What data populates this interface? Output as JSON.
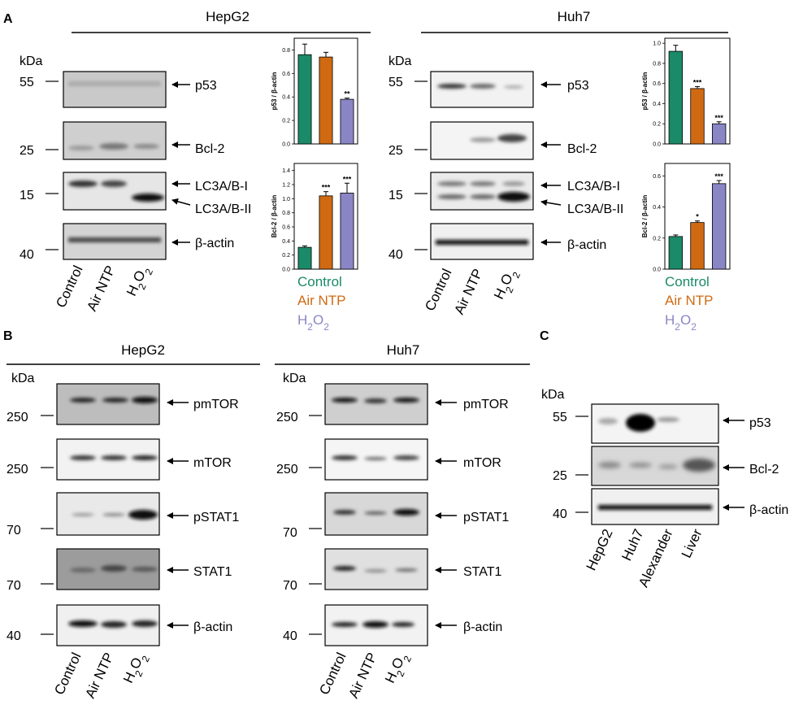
{
  "colors": {
    "control": "#1b8a68",
    "air_ntp": "#d06a12",
    "h2o2": "#8a86c6"
  },
  "units": {
    "kda": "kDa"
  },
  "lanes": {
    "control": "Control",
    "air_ntp": "Air NTP",
    "h2o2_main": "H",
    "h2o2_sub1": "2",
    "h2o2_mid": "O",
    "h2o2_sub2": "2"
  },
  "legend": {
    "control": "Control",
    "air_ntp": "Air NTP",
    "h2o2_main": "H",
    "h2o2_sub1": "2",
    "h2o2_mid": "O",
    "h2o2_sub2": "2"
  },
  "panel_a": {
    "letter": "A",
    "hepg2": {
      "title": "HepG2",
      "blots": [
        {
          "mw": "55",
          "label": "p53"
        },
        {
          "mw": "25",
          "label": "Bcl-2"
        },
        {
          "mw": "15",
          "label": "LC3A/B-I",
          "label2": "LC3A/B-II"
        },
        {
          "mw": "40",
          "label": "β-actin"
        }
      ]
    },
    "huh7": {
      "title": "Huh7",
      "blots": [
        {
          "mw": "55",
          "label": "p53"
        },
        {
          "mw": "25",
          "label": "Bcl-2"
        },
        {
          "mw": "15",
          "label": "LC3A/B-I",
          "label2": "LC3A/B-II"
        },
        {
          "mw": "40",
          "label": "β-actin"
        }
      ]
    }
  },
  "panel_b": {
    "letter": "B",
    "hepg2": {
      "title": "HepG2",
      "blots": [
        {
          "mw": "250",
          "label": "pmTOR"
        },
        {
          "mw": "250",
          "label": "mTOR"
        },
        {
          "mw": "70",
          "label": "pSTAT1"
        },
        {
          "mw": "70",
          "label": "STAT1"
        },
        {
          "mw": "40",
          "label": "β-actin"
        }
      ]
    },
    "huh7": {
      "title": "Huh7",
      "blots": [
        {
          "mw": "250",
          "label": "pmTOR"
        },
        {
          "mw": "250",
          "label": "mTOR"
        },
        {
          "mw": "70",
          "label": "pSTAT1"
        },
        {
          "mw": "70",
          "label": "STAT1"
        },
        {
          "mw": "40",
          "label": "β-actin"
        }
      ]
    }
  },
  "panel_c": {
    "letter": "C",
    "blots": [
      {
        "mw": "55",
        "label": "p53"
      },
      {
        "mw": "25",
        "label": "Bcl-2"
      },
      {
        "mw": "40",
        "label": "β-actin"
      }
    ],
    "lanes": [
      "HepG2",
      "Huh7",
      "Alexander",
      "Liver"
    ]
  },
  "chart_data": [
    {
      "type": "bar",
      "cell": "HepG2",
      "categories": [
        "Control",
        "Air NTP",
        "H2O2"
      ],
      "values": [
        0.76,
        0.74,
        0.38
      ],
      "errors": [
        0.09,
        0.04,
        0.01
      ],
      "significance": [
        "",
        "",
        "**"
      ],
      "ylabel": "p53 / β-actin",
      "ylim": [
        0,
        0.9
      ],
      "yticks": [
        "0.0",
        "0.2",
        "0.4",
        "0.6",
        "0.8"
      ]
    },
    {
      "type": "bar",
      "cell": "HepG2",
      "categories": [
        "Control",
        "Air NTP",
        "H2O2"
      ],
      "values": [
        0.31,
        1.04,
        1.08
      ],
      "errors": [
        0.02,
        0.06,
        0.14
      ],
      "significance": [
        "",
        "***",
        "***"
      ],
      "ylabel": "Bcl-2 / β-actin",
      "ylim": [
        0,
        1.5
      ],
      "yticks": [
        "0.0",
        "0.2",
        "0.4",
        "0.6",
        "0.8",
        "1.0",
        "1.2",
        "1.4"
      ]
    },
    {
      "type": "bar",
      "cell": "Huh7",
      "categories": [
        "Control",
        "Air NTP",
        "H2O2"
      ],
      "values": [
        0.92,
        0.55,
        0.2
      ],
      "errors": [
        0.06,
        0.02,
        0.02
      ],
      "significance": [
        "",
        "***",
        "***"
      ],
      "ylabel": "p53 / β-actin",
      "ylim": [
        0,
        1.05
      ],
      "yticks": [
        "0.0",
        "0.2",
        "0.4",
        "0.6",
        "0.8",
        "1.0"
      ]
    },
    {
      "type": "bar",
      "cell": "Huh7",
      "categories": [
        "Control",
        "Air NTP",
        "H2O2"
      ],
      "values": [
        0.21,
        0.3,
        0.55
      ],
      "errors": [
        0.01,
        0.01,
        0.02
      ],
      "significance": [
        "",
        "*",
        "***"
      ],
      "ylabel": "Bcl-2 / β-actin",
      "ylim": [
        0,
        0.68
      ],
      "yticks": [
        "0.0",
        "0.2",
        "0.4",
        "0.6"
      ]
    }
  ]
}
